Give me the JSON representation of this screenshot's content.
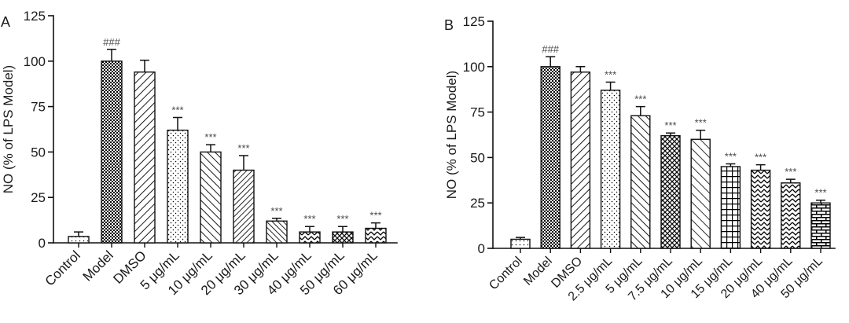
{
  "chart_data": [
    {
      "type": "bar",
      "panel_label": "A",
      "ylabel": "NO (% of LPS Model)",
      "ylim": [
        0,
        125
      ],
      "yticks": [
        0,
        25,
        50,
        75,
        100,
        125
      ],
      "categories": [
        "Control",
        "Model",
        "DMSO",
        "5 μg/mL",
        "10 μg/mL",
        "20 μg/mL",
        "30 μg/mL",
        "40 μg/mL",
        "50 μg/mL",
        "60 μg/mL"
      ],
      "values": [
        3.5,
        100,
        94,
        62,
        50,
        40,
        12,
        6,
        6,
        8
      ],
      "errors": [
        2.5,
        6.5,
        6.5,
        7,
        4,
        8,
        1.5,
        3,
        3,
        3
      ],
      "annotations": [
        "",
        "###",
        "",
        "***",
        "***",
        "***",
        "***",
        "***",
        "***",
        "***"
      ]
    },
    {
      "type": "bar",
      "panel_label": "B",
      "ylabel": "NO (% of LPS Model)",
      "ylim": [
        0,
        125
      ],
      "yticks": [
        0,
        25,
        50,
        75,
        100,
        125
      ],
      "categories": [
        "Control",
        "Model",
        "DMSO",
        "2.5 μg/mL",
        "5 μg/mL",
        "7.5 μg/mL",
        "10 μg/mL",
        "15 μg/mL",
        "20 μg/mL",
        "40 μg/mL",
        "50 μg/mL"
      ],
      "values": [
        5,
        100,
        97,
        87,
        73,
        62,
        60,
        45,
        43,
        36,
        25
      ],
      "errors": [
        1,
        5.5,
        3,
        4.5,
        5,
        1.5,
        5,
        1.5,
        3,
        2,
        1.5
      ],
      "annotations": [
        "",
        "###",
        "",
        "***",
        "***",
        "***",
        "***",
        "***",
        "***",
        "***",
        "***"
      ]
    }
  ]
}
